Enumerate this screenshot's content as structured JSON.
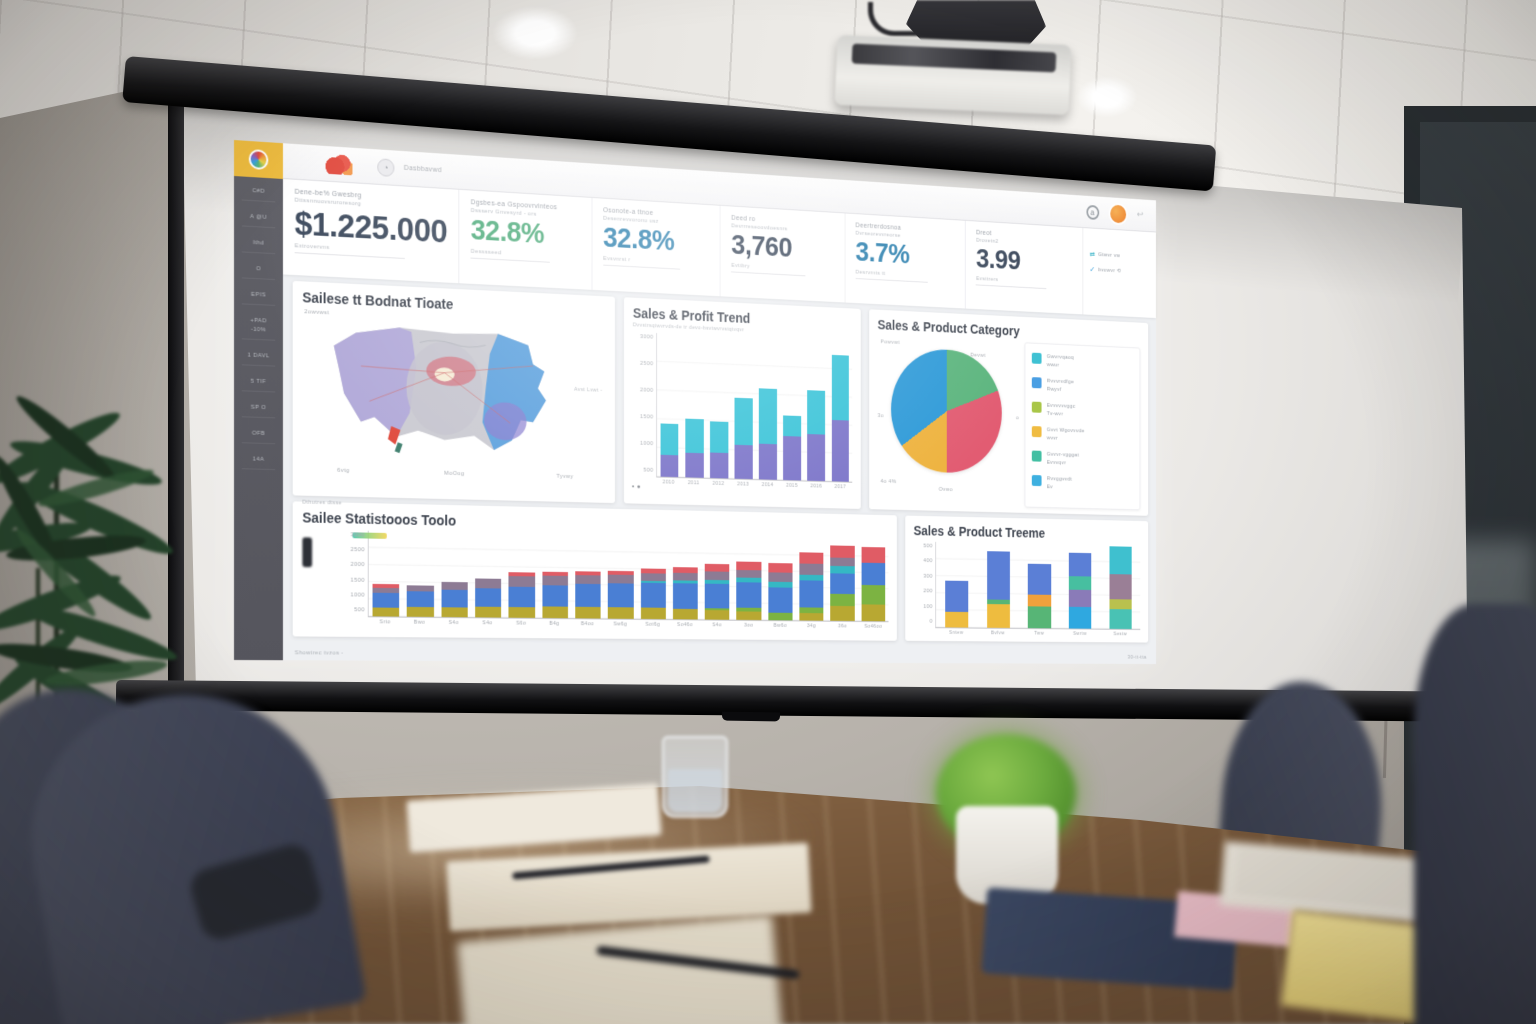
{
  "screen": {
    "topbar": {
      "app_label": "Dasbbavwd"
    },
    "sidebar": {
      "items": [
        "C#D",
        "A @U",
        "Ithd",
        "O",
        "EPIS",
        "+PAD -10%",
        "1 DAVL",
        "5 TIF",
        "SP O",
        "OFB",
        "14A"
      ]
    },
    "kpis": [
      {
        "label": "Dene-be% Gwesbrg",
        "label2": "Dttssnnuovsruroresorg",
        "value": "$1.225.000",
        "sub": "Extrovervns",
        "color": "#3d4a5d"
      },
      {
        "label": "Dgsbes-ea Gspoovrvinteos",
        "label2": "Dssserv Gnvesyrd - ors",
        "value": "32.8%",
        "sub": "Desssseed",
        "color": "#53ae7f"
      },
      {
        "label": "Osonote-a ttnoe",
        "label2": "Desenrevvoronu usz",
        "value": "32.8%",
        "sub": "Evsvnrst r",
        "color": "#2a7fae"
      },
      {
        "label": "Deed ro",
        "label2": "Devrrreseoovdoesnrs",
        "value": "3,760",
        "sub": "Evttbry",
        "color": "#3d4a5d"
      },
      {
        "label": "Deertrerdosnoa",
        "label2": "Dvrseorevvreorse",
        "value": "3.7%",
        "sub": "Desrvrnts tt",
        "color": "#2a7fae"
      },
      {
        "label": "Dreot",
        "label2": "Drovetn2",
        "value": "3.99",
        "sub": "Evsttrers",
        "color": "#3d4a5d"
      }
    ],
    "kpi_widget": {
      "rows": [
        {
          "icon": "⇄",
          "text": "Gtwvr vw",
          "color": "#3fb5c9"
        },
        {
          "icon": "✓",
          "text": "bvowvr ⟲",
          "color": "#2e9ad8"
        }
      ]
    },
    "panels": {
      "map": {
        "title": "Sailese tt Bodnat Tioate",
        "corner": "2owvwst",
        "note": "Avst Lvwt -",
        "x_ticks": [
          "6vtg",
          "MoOog",
          "Tyvwy"
        ]
      },
      "trend": {
        "title": "Sales & Profit Trend",
        "subtitle": "Dvvstrsqtwvrvds-de tr devo-bsvtwvrvstqtvqvr",
        "marks": "∘ ●"
      },
      "pie": {
        "title": "Sales & Product Category",
        "labels": [
          {
            "t": "Powvwt",
            "x": "2%",
            "y": "2%"
          },
          {
            "t": "Devwt",
            "x": "64%",
            "y": "8%"
          },
          {
            "t": "o",
            "x": "96%",
            "y": "46%"
          },
          {
            "t": "Ovwo",
            "x": "42%",
            "y": "92%"
          },
          {
            "t": "4o 4%",
            "x": "2%",
            "y": "88%"
          },
          {
            "t": "3o",
            "x": "0%",
            "y": "48%"
          }
        ],
        "legend": [
          {
            "color": "#3fc1d3",
            "line1": "Gwvrvqaoq",
            "line2": "wwur"
          },
          {
            "color": "#4a9fe3",
            "line1": "Rvvvrvdfge",
            "line2": "Rwyvf"
          },
          {
            "color": "#a9c648",
            "line1": "Evvvvvvggc",
            "line2": "Tv-wvr"
          },
          {
            "color": "#f0bc42",
            "line1": "Gvvt Wgovvvde",
            "line2": "wvvr"
          },
          {
            "color": "#43bfa3",
            "line1": "Gvvvr-vgggat",
            "line2": "Evvvqvr"
          },
          {
            "color": "#3eb0e0",
            "line1": "Rvvggvvdt",
            "line2": "Ev"
          }
        ]
      },
      "stats": {
        "title": "Sailee Statistooos Toolo",
        "note": "Dthutres dtsse"
      },
      "treeme": {
        "title": "Sales & Product Treeme"
      }
    },
    "footer": {
      "left": "Showtrec tvzos -",
      "right": "30-tt-tta"
    }
  },
  "chart_data": [
    {
      "id": "trend",
      "type": "bar",
      "title": "Sales & Profit Trend",
      "x": [
        "2010",
        "2011",
        "2012",
        "2013",
        "2014",
        "2015",
        "2016",
        "2017"
      ],
      "series": [
        {
          "name": "profit",
          "color": "#7b74c9",
          "values": [
            750,
            850,
            900,
            1200,
            1250,
            1550,
            1650,
            2200
          ]
        },
        {
          "name": "sales",
          "color": "#38c3d8",
          "values": [
            1100,
            1200,
            1100,
            1650,
            1950,
            750,
            1550,
            2300
          ]
        }
      ],
      "ymax": 5000,
      "yticks": [
        "3000",
        "2500",
        "2000",
        "1500",
        "1000",
        "500"
      ]
    },
    {
      "id": "pie",
      "type": "pie",
      "title": "Sales & Product Category",
      "slices": [
        {
          "label": "green",
          "color": "#5cb57e",
          "value": 19
        },
        {
          "label": "red",
          "color": "#e25c72",
          "value": 31
        },
        {
          "label": "yellow",
          "color": "#eeb33f",
          "value": 15
        },
        {
          "label": "blue",
          "color": "#2e9ad8",
          "value": 35
        }
      ]
    },
    {
      "id": "stats",
      "type": "bar",
      "title": "Sales Statistics",
      "x": [
        "Srto",
        "Bwo",
        "S4o",
        "S4o",
        "S6o",
        "B4g",
        "B4oo",
        "Sw6g",
        "Sot6g",
        "So46o",
        "S4o",
        "3oo",
        "Bw6o",
        "34g",
        "36o",
        "So46oo"
      ],
      "series": [
        {
          "name": "olive",
          "color": "#b8a832",
          "values": [
            9,
            10,
            10,
            11,
            11,
            12,
            12,
            12,
            12,
            11,
            10,
            9,
            0,
            8,
            16,
            18
          ]
        },
        {
          "name": "green",
          "color": "#7cb342",
          "values": [
            0,
            0,
            0,
            0,
            0,
            0,
            0,
            0,
            0,
            0,
            2,
            4,
            8,
            6,
            12,
            20
          ]
        },
        {
          "name": "blue",
          "color": "#4a7fd4",
          "values": [
            14,
            15,
            17,
            18,
            20,
            21,
            23,
            24,
            25,
            26,
            25,
            26,
            26,
            28,
            22,
            24
          ]
        },
        {
          "name": "teal",
          "color": "#35b8c4",
          "values": [
            0,
            0,
            0,
            0,
            0,
            0,
            0,
            0,
            2,
            3,
            4,
            5,
            6,
            6,
            8,
            0
          ]
        },
        {
          "name": "mauve",
          "color": "#8d7b94",
          "values": [
            5,
            6,
            8,
            10,
            11,
            10,
            9,
            9,
            8,
            8,
            9,
            8,
            10,
            12,
            8,
            0
          ]
        },
        {
          "name": "red",
          "color": "#e05c65",
          "values": [
            4,
            0,
            0,
            0,
            4,
            4,
            4,
            4,
            5,
            6,
            8,
            9,
            10,
            11,
            13,
            16
          ]
        }
      ],
      "ymax": 85,
      "yticks": [
        "3000",
        "2500",
        "2000",
        "1500",
        "1000",
        "500"
      ]
    },
    {
      "id": "treeme",
      "type": "bar",
      "title": "Sales & Product Treeme",
      "x": [
        "Sntew",
        "Bvfvw",
        "Tww",
        "Swrtw",
        "Sestw"
      ],
      "bars": [
        [
          [
            "#eebc3f",
            18
          ],
          [
            "#5b7fd6",
            37
          ]
        ],
        [
          [
            "#eebc3f",
            28
          ],
          [
            "#57b576",
            5
          ],
          [
            "#5b7fd6",
            57
          ]
        ],
        [
          [
            "#57b576",
            26
          ],
          [
            "#f0a13c",
            14
          ],
          [
            "#5b7fd6",
            36
          ]
        ],
        [
          [
            "#2fa8e0",
            26
          ],
          [
            "#8a7bb8",
            20
          ],
          [
            "#47bfa0",
            16
          ],
          [
            "#5b7fd6",
            28
          ]
        ],
        [
          [
            "#49c2b4",
            24
          ],
          [
            "#b9c14e",
            12
          ],
          [
            "#9a7f96",
            30
          ],
          [
            "#3fc0cf",
            33
          ]
        ]
      ],
      "ymax": 100,
      "yticks": [
        "500",
        "400",
        "300",
        "200",
        "100",
        "0"
      ]
    }
  ]
}
